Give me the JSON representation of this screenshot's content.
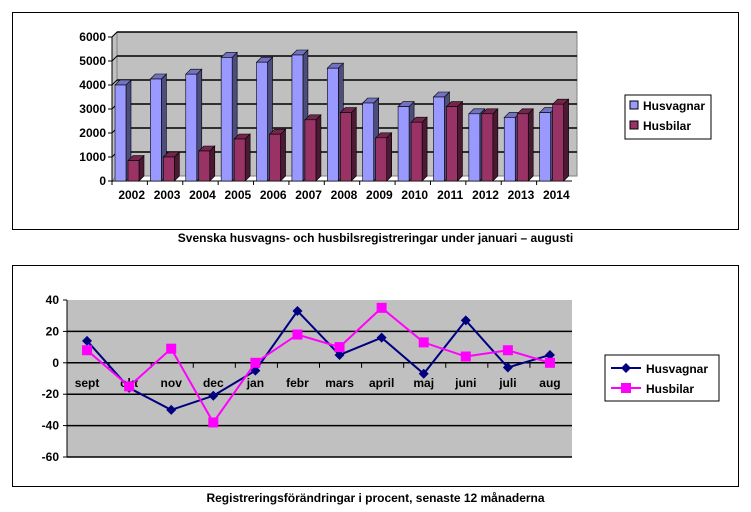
{
  "chart_data": [
    {
      "type": "bar",
      "title": "Svenska husvagns- och husbilsregistreringar under januari – augusti",
      "categories": [
        "2002",
        "2003",
        "2004",
        "2005",
        "2006",
        "2007",
        "2008",
        "2009",
        "2010",
        "2011",
        "2012",
        "2013",
        "2014"
      ],
      "ylim": [
        0,
        6000
      ],
      "yticks": [
        0,
        1000,
        2000,
        3000,
        4000,
        5000,
        6000
      ],
      "grid": true,
      "legend": "right",
      "series": [
        {
          "name": "Husvagnar",
          "color": "#9999FF",
          "values": [
            4000,
            4250,
            4450,
            5150,
            4950,
            5250,
            4700,
            3250,
            3100,
            3500,
            2800,
            2650,
            2850
          ]
        },
        {
          "name": "Husbilar",
          "color": "#993366",
          "values": [
            850,
            1000,
            1250,
            1750,
            1950,
            2550,
            2850,
            1800,
            2450,
            3100,
            2800,
            2800,
            3200
          ]
        }
      ]
    },
    {
      "type": "line",
      "title": "Registreringsförändringar i procent, senaste 12 månaderna",
      "categories": [
        "sept",
        "okt",
        "nov",
        "dec",
        "jan",
        "febr",
        "mars",
        "april",
        "maj",
        "juni",
        "juli",
        "aug"
      ],
      "ylim": [
        -60,
        40
      ],
      "yticks": [
        -60,
        -40,
        -20,
        0,
        20,
        40
      ],
      "grid": true,
      "legend": "right",
      "series": [
        {
          "name": "Husvagnar",
          "color": "#000080",
          "values": [
            14,
            -16,
            -30,
            -21,
            -5,
            33,
            5,
            16,
            -7,
            27,
            -3,
            5
          ]
        },
        {
          "name": "Husbilar",
          "color": "#FF00FF",
          "values": [
            8,
            -15,
            9,
            -38,
            0,
            18,
            10,
            35,
            13,
            4,
            8,
            0
          ]
        }
      ]
    }
  ]
}
